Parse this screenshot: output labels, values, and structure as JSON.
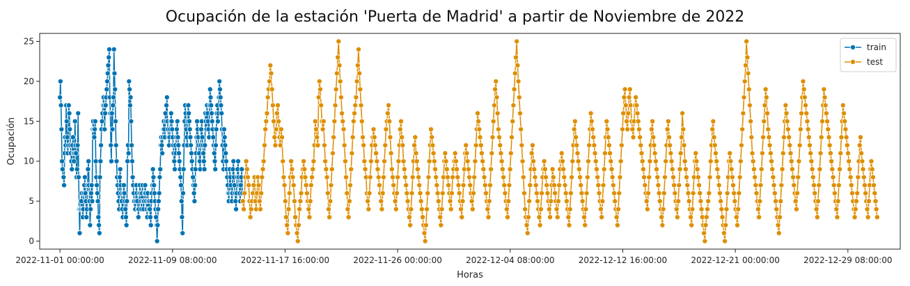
{
  "chart_data": {
    "type": "line",
    "title": "Ocupación de la estación 'Puerta de Madrid' a partir de Noviembre de 2022",
    "xlabel": "Horas",
    "ylabel": "Ocupación",
    "ylim": [
      -1,
      26
    ],
    "yticks": [
      0,
      5,
      10,
      15,
      20,
      25
    ],
    "xlim": [
      "2022-10-30 12:00:00",
      "2023-01-02 05:00:00"
    ],
    "xticks": [
      "2022-11-01 00:00:00",
      "2022-11-09 08:00:00",
      "2022-11-17 16:00:00",
      "2022-11-26 00:00:00",
      "2022-12-04 08:00:00",
      "2022-12-12 16:00:00",
      "2022-12-21 00:00:00",
      "2022-12-29 08:00:00"
    ],
    "legend_position": "top-right",
    "grid": false,
    "series": [
      {
        "name": "train",
        "color": "#0173b2",
        "x_start": "2022-11-01 00:00:00",
        "x_end": "2022-11-14 12:00:00",
        "values": [
          18,
          20,
          17,
          14,
          10,
          9,
          8,
          8,
          7,
          11,
          13,
          12,
          17,
          15,
          13,
          11,
          12,
          17,
          16,
          14,
          12,
          11,
          10,
          9,
          12,
          13,
          11,
          10,
          11,
          15,
          12,
          11,
          8,
          9,
          12,
          16,
          8,
          4,
          1,
          4,
          4,
          5,
          6,
          4,
          3,
          4,
          6,
          7,
          8,
          6,
          5,
          3,
          4,
          7,
          9,
          10,
          7,
          5,
          2,
          4,
          6,
          7,
          5,
          14,
          15,
          14,
          13,
          14,
          15,
          10,
          8,
          7,
          6,
          5,
          3,
          2,
          1,
          8,
          10,
          12,
          14,
          15,
          16,
          17,
          18,
          17,
          14,
          16,
          17,
          18,
          19,
          20,
          21,
          22,
          23,
          24,
          18,
          16,
          12,
          10,
          16,
          14,
          17,
          18,
          24,
          21,
          19,
          15,
          12,
          10,
          8,
          7,
          6,
          5,
          4,
          8,
          9,
          7,
          6,
          5,
          4,
          3,
          6,
          7,
          6,
          5,
          4,
          3,
          2,
          5,
          10,
          12,
          11,
          20,
          19,
          17,
          18,
          15,
          12,
          10,
          8,
          7,
          6,
          5,
          4,
          4,
          5,
          7,
          6,
          5,
          4,
          3,
          4,
          6,
          7,
          6,
          5,
          4,
          6,
          7,
          5,
          4,
          5,
          6,
          7,
          6,
          5,
          4,
          3,
          6,
          5,
          4,
          5,
          4,
          3,
          2,
          5,
          6,
          7,
          9,
          8,
          7,
          6,
          5,
          4,
          3,
          2,
          0,
          2,
          4,
          5,
          6,
          8,
          9,
          12,
          13,
          12,
          11,
          13,
          14,
          15,
          14,
          13,
          16,
          15,
          17,
          18,
          15,
          14,
          13,
          12,
          13,
          14,
          15,
          16,
          15,
          14,
          13,
          12,
          11,
          10,
          9,
          12,
          11,
          13,
          14,
          15,
          13,
          12,
          11,
          10,
          9,
          8,
          7,
          5,
          3,
          1,
          6,
          9,
          12,
          15,
          17,
          16,
          14,
          13,
          12,
          15,
          17,
          16,
          15,
          14,
          13,
          12,
          11,
          10,
          9,
          8,
          7,
          6,
          5,
          7,
          9,
          11,
          13,
          15,
          14,
          13,
          12,
          11,
          10,
          9,
          12,
          14,
          15,
          13,
          12,
          11,
          10,
          9,
          12,
          16,
          15,
          14,
          17,
          16,
          15,
          14,
          13,
          17,
          19,
          18,
          17,
          16,
          15,
          14,
          13,
          12,
          11,
          10,
          9,
          12,
          14,
          16,
          17,
          15,
          16,
          18,
          20,
          19,
          18,
          17,
          16,
          14,
          12,
          10,
          9,
          14,
          13,
          12,
          11,
          10,
          9,
          8,
          7,
          6,
          5,
          6,
          9,
          8,
          7,
          6,
          5,
          6,
          9,
          10,
          8,
          7,
          6,
          5,
          4,
          6,
          8,
          9,
          10,
          8,
          7,
          6,
          5,
          7,
          8,
          9,
          6
        ]
      },
      {
        "name": "test",
        "color": "#de8f05",
        "x_start": "2022-11-14 13:00:00",
        "x_end": "2022-12-31 12:00:00",
        "values": [
          5,
          4,
          6,
          8,
          10,
          9,
          8,
          7,
          5,
          3,
          4,
          5,
          6,
          7,
          8,
          5,
          4,
          6,
          8,
          7,
          5,
          4,
          6,
          8,
          9,
          10,
          12,
          14,
          15,
          16,
          18,
          19,
          20,
          22,
          21,
          19,
          17,
          15,
          13,
          12,
          14,
          16,
          17,
          15,
          13,
          12,
          14,
          13,
          10,
          8,
          7,
          5,
          3,
          2,
          1,
          4,
          6,
          8,
          10,
          9,
          8,
          7,
          5,
          3,
          2,
          1,
          0,
          2,
          4,
          5,
          6,
          8,
          9,
          10,
          9,
          8,
          7,
          6,
          5,
          4,
          3,
          5,
          7,
          8,
          9,
          10,
          12,
          15,
          14,
          13,
          12,
          18,
          20,
          19,
          17,
          15,
          14,
          15,
          12,
          10,
          9,
          8,
          6,
          4,
          3,
          5,
          7,
          9,
          11,
          13,
          15,
          17,
          19,
          21,
          23,
          25,
          22,
          20,
          18,
          16,
          15,
          14,
          12,
          10,
          8,
          6,
          4,
          3,
          5,
          7,
          9,
          11,
          13,
          15,
          16,
          17,
          18,
          20,
          22,
          24,
          21,
          19,
          17,
          15,
          13,
          12,
          10,
          9,
          8,
          6,
          5,
          4,
          6,
          8,
          10,
          12,
          13,
          14,
          13,
          12,
          11,
          10,
          9,
          8,
          7,
          6,
          5,
          4,
          6,
          8,
          10,
          12,
          14,
          15,
          16,
          17,
          15,
          13,
          11,
          9,
          8,
          7,
          6,
          5,
          4,
          6,
          8,
          10,
          12,
          14,
          15,
          13,
          12,
          10,
          9,
          8,
          7,
          6,
          5,
          4,
          3,
          2,
          4,
          6,
          8,
          10,
          12,
          13,
          11,
          10,
          9,
          8,
          7,
          6,
          5,
          4,
          3,
          2,
          1,
          0,
          2,
          4,
          6,
          8,
          10,
          12,
          14,
          13,
          12,
          11,
          10,
          9,
          8,
          7,
          6,
          5,
          4,
          3,
          2,
          4,
          6,
          8,
          10,
          11,
          10,
          9,
          8,
          7,
          6,
          5,
          4,
          6,
          8,
          9,
          10,
          11,
          10,
          9,
          8,
          7,
          6,
          5,
          4,
          3,
          5,
          7,
          9,
          11,
          12,
          11,
          10,
          9,
          8,
          7,
          6,
          5,
          4,
          6,
          8,
          10,
          12,
          14,
          16,
          15,
          14,
          13,
          12,
          11,
          10,
          9,
          8,
          7,
          6,
          5,
          4,
          3,
          5,
          7,
          9,
          11,
          13,
          15,
          17,
          19,
          20,
          18,
          16,
          14,
          13,
          12,
          11,
          10,
          9,
          8,
          7,
          6,
          5,
          4,
          3,
          5,
          7,
          9,
          11,
          13,
          15,
          17,
          19,
          21,
          23,
          25,
          22,
          20,
          18,
          16,
          14,
          12,
          10,
          8,
          6,
          4,
          3,
          2,
          1,
          3,
          5,
          7,
          9,
          11,
          12,
          10,
          9,
          8,
          7,
          6,
          5,
          4,
          3,
          2,
          4,
          6,
          8,
          9,
          10,
          9,
          8,
          7,
          6,
          5,
          4,
          3,
          5,
          7,
          9,
          8,
          7,
          6,
          5,
          4,
          3,
          5,
          7,
          9,
          10,
          11,
          10,
          9,
          8,
          7,
          6,
          5,
          4,
          3,
          2,
          4,
          6,
          8,
          10,
          12,
          14,
          15,
          13,
          12,
          11,
          10,
          9,
          8,
          7,
          6,
          5,
          4,
          3,
          2,
          4,
          6,
          8,
          10,
          12,
          14,
          16,
          15,
          14,
          13,
          12,
          11,
          10,
          9,
          8,
          7,
          6,
          5,
          4,
          3,
          5,
          7,
          9,
          11,
          13,
          15,
          14,
          13,
          12,
          11,
          10,
          9,
          8,
          7,
          6,
          5,
          4,
          3,
          2,
          4,
          6,
          8,
          10,
          12,
          14,
          16,
          18,
          19,
          17,
          15,
          14,
          16,
          18,
          19,
          17,
          15,
          14,
          13,
          15,
          17,
          18,
          17,
          16,
          15,
          14,
          13,
          12,
          11,
          10,
          9,
          8,
          7,
          6,
          5,
          4,
          6,
          8,
          10,
          12,
          14,
          15,
          13,
          12,
          11,
          10,
          9,
          8,
          7,
          6,
          5,
          4,
          3,
          2,
          4,
          6,
          8,
          10,
          12,
          14,
          15,
          13,
          12,
          11,
          10,
          9,
          8,
          7,
          6,
          5,
          4,
          3,
          5,
          7,
          9,
          11,
          13,
          16,
          14,
          12,
          10,
          9,
          8,
          7,
          6,
          5,
          4,
          3,
          2,
          4,
          6,
          8,
          10,
          11,
          10,
          9,
          8,
          7,
          6,
          5,
          4,
          3,
          2,
          1,
          0,
          2,
          3,
          4,
          5,
          6,
          8,
          10,
          12,
          14,
          15,
          13,
          12,
          11,
          10,
          9,
          8,
          7,
          6,
          5,
          4,
          3,
          2,
          1,
          0,
          2,
          4,
          6,
          8,
          10,
          11,
          10,
          9,
          8,
          7,
          6,
          5,
          4,
          3,
          2,
          4,
          6,
          8,
          10,
          12,
          14,
          16,
          18,
          20,
          22,
          25,
          23,
          21,
          19,
          17,
          15,
          13,
          11,
          10,
          9,
          8,
          7,
          6,
          5,
          4,
          3,
          5,
          7,
          9,
          11,
          13,
          15,
          17,
          19,
          18,
          16,
          14,
          13,
          12,
          11,
          10,
          9,
          8,
          7,
          6,
          5,
          4,
          3,
          2,
          1,
          3,
          5,
          7,
          9,
          11,
          13,
          15,
          17,
          16,
          15,
          14,
          13,
          12,
          11,
          10,
          9,
          8,
          7,
          6,
          5,
          4,
          6,
          8,
          10,
          12,
          14,
          16,
          18,
          20,
          19,
          18,
          17,
          16,
          15,
          14,
          13,
          12,
          11,
          10,
          9,
          8,
          7,
          6,
          5,
          4,
          3,
          5,
          7,
          9,
          11,
          13,
          15,
          17,
          19,
          18,
          17,
          16,
          15,
          14,
          13,
          12,
          11,
          10,
          9,
          8,
          7,
          6,
          5,
          4,
          3,
          5,
          7,
          9,
          11,
          13,
          15,
          17,
          16,
          15,
          14,
          13,
          12,
          11,
          10,
          9,
          8,
          7,
          6,
          5,
          4,
          3,
          4,
          5,
          6,
          8,
          10,
          12,
          13,
          11,
          10,
          9,
          8,
          7,
          6,
          5,
          4,
          3,
          5,
          7,
          9,
          10,
          9,
          8,
          7,
          6,
          5,
          4,
          3
        ]
      }
    ]
  }
}
